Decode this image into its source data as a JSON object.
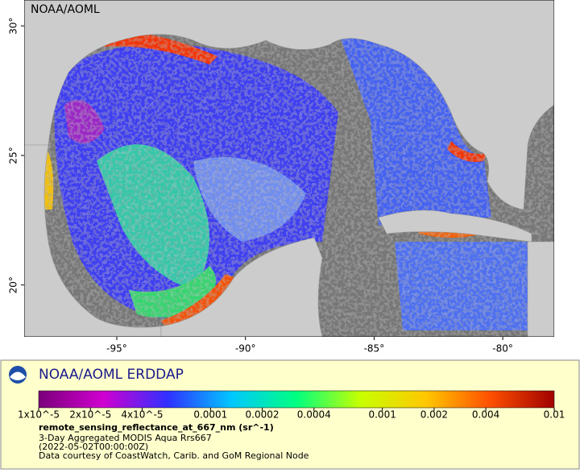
{
  "map": {
    "watermark": "NOAA/AOML",
    "latlim": [
      18,
      31
    ],
    "lonlim": [
      -98.6,
      -78
    ],
    "lat_ticks": [
      {
        "value": 30,
        "label": "30°"
      },
      {
        "value": 25,
        "label": "25°"
      },
      {
        "value": 20,
        "label": "20°"
      }
    ],
    "lon_ticks": [
      {
        "value": -95,
        "label": "-95°"
      },
      {
        "value": -90,
        "label": "-90°"
      },
      {
        "value": -85,
        "label": "-85°"
      },
      {
        "value": -80,
        "label": "-80°"
      }
    ]
  },
  "legend": {
    "logo_text": "NOAA/AOML ERDDAP",
    "colorbar": {
      "scale": "log",
      "lim": [
        1e-05,
        0.01
      ],
      "colors": [
        "#7a007a",
        "#d000d0",
        "#3030ff",
        "#00c8ff",
        "#00ff80",
        "#c8ff00",
        "#ffc800",
        "#ff5000",
        "#a00000"
      ],
      "ticks": [
        {
          "value": 1e-05,
          "label": "1x10^-5"
        },
        {
          "value": 2e-05,
          "label": "2x10^-5"
        },
        {
          "value": 4e-05,
          "label": "4x10^-5"
        },
        0.0001,
        0.0002,
        0.0004,
        0.001,
        0.002,
        0.004,
        0.01
      ]
    },
    "title": "remote_sensing_reflectance_at_667_nm (sr^-1)",
    "lines": [
      "3-Day Aggregated MODIS Aqua Rrs667",
      "(2022-05-02T00:00:00Z)",
      "Data courtesy of CoastWatch, Carib. and GoM Regional Node"
    ]
  }
}
